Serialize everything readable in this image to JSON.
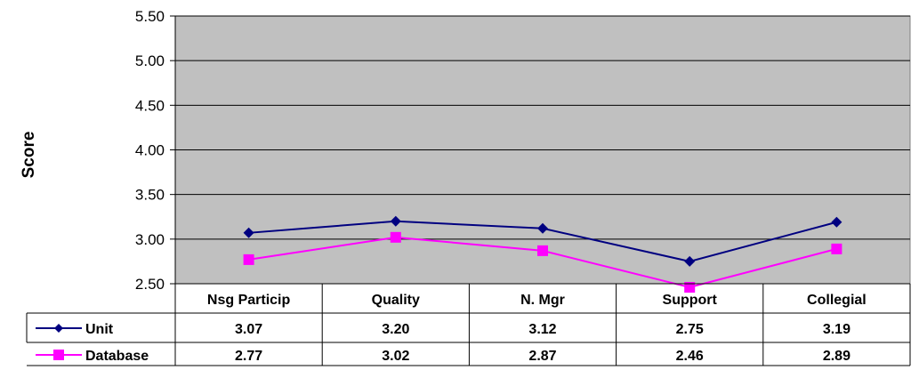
{
  "chart_data": {
    "type": "line",
    "ylabel": "Score",
    "ylim": [
      2.5,
      5.5
    ],
    "yticks": [
      "2.50",
      "3.00",
      "3.50",
      "4.00",
      "4.50",
      "5.00",
      "5.50"
    ],
    "categories": [
      "Nsg Particip",
      "Quality",
      "N. Mgr",
      "Support",
      "Collegial"
    ],
    "grid": true,
    "legend": "data-table",
    "plot_background": "#c0c0c0",
    "series": [
      {
        "name": "Unit",
        "color": "#000080",
        "marker": "diamond",
        "values": [
          3.07,
          3.2,
          3.12,
          2.75,
          3.19
        ],
        "labels": [
          "3.07",
          "3.20",
          "3.12",
          "2.75",
          "3.19"
        ]
      },
      {
        "name": "Database",
        "color": "#ff00ff",
        "marker": "square",
        "values": [
          2.77,
          3.02,
          2.87,
          2.46,
          2.89
        ],
        "labels": [
          "2.77",
          "3.02",
          "2.87",
          "2.46",
          "2.89"
        ]
      }
    ]
  }
}
